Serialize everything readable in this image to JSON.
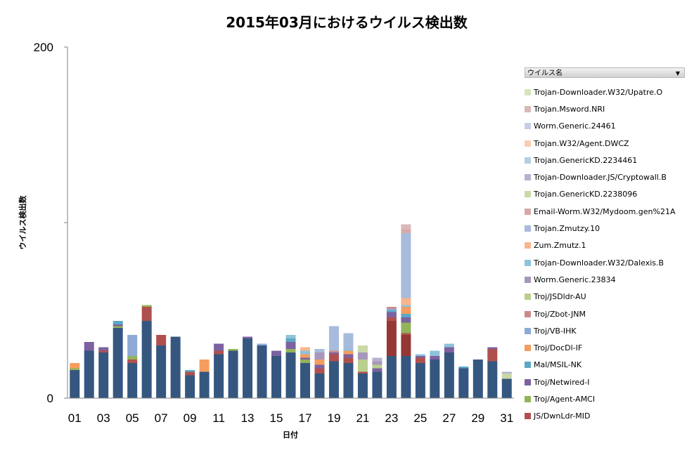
{
  "chart_data": {
    "type": "bar",
    "stacked": true,
    "title": "2015年03月におけるウイルス検出数",
    "xlabel": "日付",
    "ylabel": "ウイルス検出数",
    "ylim": [
      0,
      200
    ],
    "y_ticks": [
      "0",
      "200"
    ],
    "gridlines": [
      100
    ],
    "x_tick_labels": [
      "01",
      "03",
      "05",
      "07",
      "09",
      "11",
      "13",
      "15",
      "17",
      "19",
      "21",
      "23",
      "25",
      "27",
      "29",
      "31"
    ],
    "categories": [
      "01",
      "02",
      "03",
      "04",
      "05",
      "06",
      "07",
      "08",
      "09",
      "10",
      "11",
      "12",
      "13",
      "14",
      "15",
      "16",
      "17",
      "18",
      "19",
      "20",
      "21",
      "22",
      "23",
      "24",
      "25",
      "26",
      "27",
      "28",
      "29",
      "30",
      "31"
    ],
    "legend_title": "ウイルス名",
    "legend": [
      {
        "name": "Trojan-Downloader.W32/Upatre.O",
        "color": "#d7e4bd"
      },
      {
        "name": "Trojan.Msword.NRI",
        "color": "#d9b8b8"
      },
      {
        "name": "Worm.Generic.24461",
        "color": "#c6cde8"
      },
      {
        "name": "Trojan.W32/Agent.DWCZ",
        "color": "#fbcdb0"
      },
      {
        "name": "Trojan.GenericKD.2234461",
        "color": "#b4cfe0"
      },
      {
        "name": "Trojan-Downloader.JS/Cryptowall.B",
        "color": "#b4b3d0"
      },
      {
        "name": "Trojan.GenericKD.2238096",
        "color": "#c9d9a8"
      },
      {
        "name": "Email-Worm.W32/Mydoom.gen%21A",
        "color": "#d7a9a6"
      },
      {
        "name": "Trojan.Zmutzy.10",
        "color": "#a7bbdc"
      },
      {
        "name": "Zum.Zmutz.1",
        "color": "#f8b58c"
      },
      {
        "name": "Trojan-Downloader.W32/Dalexis.B",
        "color": "#8dc3dc"
      },
      {
        "name": "Worm.Generic.23834",
        "color": "#a896bb"
      },
      {
        "name": "Troj/JSDldr-AU",
        "color": "#b9cf8e"
      },
      {
        "name": "Troj/Zbot-JNM",
        "color": "#cc8b89"
      },
      {
        "name": "Troj/VB-IHK",
        "color": "#8eaad5"
      },
      {
        "name": "Troj/DocDl-IF",
        "color": "#f59d5e"
      },
      {
        "name": "Mal/MSIL-NK",
        "color": "#5ba8c6"
      },
      {
        "name": "Troj/Netwired-I",
        "color": "#7c629f"
      },
      {
        "name": "Troj/Agent-AMCI",
        "color": "#93b35a"
      },
      {
        "name": "JS/DwnLdr-MID",
        "color": "#b0504e"
      }
    ],
    "series": [
      {
        "name": "",
        "color": "#35577f",
        "values": [
          16,
          27,
          26,
          40,
          20,
          44,
          30,
          35,
          13,
          15,
          25,
          27,
          34,
          30,
          24,
          26,
          20,
          14,
          21,
          20,
          14,
          15,
          24,
          24,
          20,
          22,
          26,
          17,
          22,
          21,
          11
        ]
      },
      {
        "name": "",
        "color": "#953735",
        "values": [
          0,
          0,
          0,
          0,
          0,
          0,
          0,
          0,
          0,
          0,
          0,
          0,
          0,
          0,
          0,
          0,
          0,
          0,
          0,
          0,
          0,
          0,
          20,
          12,
          0,
          0,
          0,
          0,
          0,
          0,
          0
        ]
      },
      {
        "name": "JS/DwnLdr-MID",
        "color": "#b0504e",
        "values": [
          0,
          0,
          1,
          0,
          2,
          8,
          6,
          0,
          2,
          0,
          2,
          0,
          0,
          0,
          0,
          0,
          0,
          3,
          4,
          3,
          1,
          0,
          2,
          1,
          3,
          0,
          0,
          0,
          0,
          7,
          0
        ]
      },
      {
        "name": "Troj/Agent-AMCI",
        "color": "#93b35a",
        "values": [
          1,
          0,
          0,
          1,
          2,
          1,
          0,
          0,
          0,
          0,
          0,
          1,
          0,
          0,
          0,
          2,
          2,
          0,
          0,
          0,
          0,
          0,
          0,
          6,
          0,
          0,
          0,
          0,
          0,
          0,
          0
        ]
      },
      {
        "name": "Troj/Netwired-I",
        "color": "#7c629f",
        "values": [
          0,
          5,
          2,
          1,
          0,
          0,
          0,
          0,
          0,
          0,
          4,
          0,
          1,
          0,
          3,
          4,
          1,
          2,
          1,
          2,
          0,
          2,
          3,
          3,
          1,
          2,
          3,
          0,
          0,
          1,
          0
        ]
      },
      {
        "name": "Mal/MSIL-NK",
        "color": "#5ba8c6",
        "values": [
          0,
          0,
          0,
          2,
          0,
          0,
          0,
          0,
          1,
          0,
          0,
          0,
          0,
          0,
          0,
          2,
          0,
          0,
          0,
          0,
          0,
          0,
          1,
          2,
          0,
          0,
          0,
          1,
          0,
          0,
          0
        ]
      },
      {
        "name": "Troj/DocDl-IF",
        "color": "#f59d5e",
        "values": [
          3,
          0,
          0,
          0,
          0,
          0,
          0,
          0,
          0,
          7,
          0,
          0,
          0,
          0,
          0,
          0,
          2,
          3,
          0,
          2,
          0,
          0,
          0,
          4,
          0,
          0,
          0,
          0,
          0,
          0,
          0
        ]
      },
      {
        "name": "Troj/VB-IHK",
        "color": "#8eaad5",
        "values": [
          0,
          0,
          0,
          0,
          12,
          0,
          0,
          0,
          0,
          0,
          0,
          0,
          0,
          1,
          0,
          0,
          0,
          0,
          0,
          0,
          0,
          0,
          1,
          0,
          0,
          0,
          0,
          0,
          0,
          0,
          0
        ]
      },
      {
        "name": "Troj/Zbot-JNM",
        "color": "#cc8b89",
        "values": [
          0,
          0,
          0,
          0,
          0,
          0,
          0,
          0,
          0,
          0,
          0,
          0,
          0,
          0,
          0,
          0,
          0,
          0,
          1,
          0,
          0,
          0,
          1,
          0,
          0,
          0,
          0,
          0,
          0,
          0,
          0
        ]
      },
      {
        "name": "Troj/JSDldr-AU",
        "color": "#b9cf8e",
        "values": [
          0,
          0,
          0,
          0,
          0,
          0,
          0,
          0,
          0,
          0,
          0,
          0,
          0,
          0,
          0,
          0,
          0,
          0,
          0,
          0,
          7,
          2,
          0,
          0,
          0,
          0,
          0,
          0,
          0,
          0,
          0
        ]
      },
      {
        "name": "Worm.Generic.23834",
        "color": "#a896bb",
        "values": [
          0,
          0,
          0,
          0,
          0,
          0,
          0,
          0,
          0,
          0,
          0,
          0,
          0,
          0,
          0,
          0,
          0,
          4,
          0,
          0,
          4,
          2,
          0,
          0,
          0,
          0,
          0,
          0,
          0,
          0,
          0
        ]
      },
      {
        "name": "Trojan-Downloader.W32/Dalexis.B",
        "color": "#8dc3dc",
        "values": [
          0,
          0,
          0,
          0,
          0,
          0,
          0,
          0,
          0,
          0,
          0,
          0,
          0,
          0,
          0,
          2,
          2,
          0,
          0,
          1,
          0,
          0,
          0,
          1,
          1,
          3,
          2,
          0,
          0,
          0,
          0
        ]
      },
      {
        "name": "Zum.Zmutz.1",
        "color": "#f8b58c",
        "values": [
          0,
          0,
          0,
          0,
          0,
          0,
          0,
          0,
          0,
          0,
          0,
          0,
          0,
          0,
          0,
          0,
          2,
          0,
          0,
          0,
          0,
          0,
          0,
          4,
          0,
          0,
          0,
          0,
          0,
          0,
          0
        ]
      },
      {
        "name": "Trojan.Zmutzy.10",
        "color": "#a7bbdc",
        "values": [
          0,
          0,
          0,
          0,
          0,
          0,
          0,
          0,
          0,
          0,
          0,
          0,
          0,
          0,
          0,
          0,
          0,
          2,
          14,
          9,
          0,
          0,
          0,
          37,
          0,
          0,
          0,
          0,
          0,
          0,
          0
        ]
      },
      {
        "name": "Email-Worm.W32/Mydoom.gen%21A",
        "color": "#d7a9a6",
        "values": [
          0,
          0,
          0,
          0,
          0,
          0,
          0,
          0,
          0,
          0,
          0,
          0,
          0,
          0,
          0,
          0,
          0,
          0,
          0,
          0,
          0,
          0,
          0,
          2,
          0,
          0,
          0,
          0,
          0,
          0,
          0
        ]
      },
      {
        "name": "Trojan.GenericKD.2238096",
        "color": "#c9d9a8",
        "values": [
          0,
          0,
          0,
          0,
          0,
          0,
          0,
          0,
          0,
          0,
          0,
          0,
          0,
          0,
          0,
          0,
          0,
          0,
          0,
          0,
          4,
          0,
          0,
          0,
          0,
          0,
          0,
          0,
          0,
          0,
          3
        ]
      },
      {
        "name": "Trojan-Downloader.JS/Cryptowall.B",
        "color": "#b4b3d0",
        "values": [
          0,
          0,
          0,
          0,
          0,
          0,
          0,
          0,
          0,
          0,
          0,
          0,
          0,
          0,
          0,
          0,
          0,
          0,
          0,
          0,
          0,
          2,
          0,
          0,
          0,
          0,
          0,
          0,
          0,
          0,
          1
        ]
      },
      {
        "name": "Trojan.GenericKD.2234461",
        "color": "#b4cfe0",
        "values": [
          0,
          0,
          0,
          0,
          0,
          0,
          0,
          0,
          0,
          0,
          0,
          0,
          0,
          0,
          0,
          0,
          0,
          0,
          0,
          0,
          0,
          0,
          0,
          0,
          0,
          0,
          0,
          0,
          0,
          0,
          0
        ]
      },
      {
        "name": "Trojan.W32/Agent.DWCZ",
        "color": "#fbcdb0",
        "values": [
          0,
          0,
          0,
          0,
          0,
          0,
          0,
          0,
          0,
          0,
          0,
          0,
          0,
          0,
          0,
          0,
          0,
          0,
          0,
          0,
          0,
          0,
          0,
          0,
          0,
          0,
          0,
          0,
          0,
          0,
          0
        ]
      },
      {
        "name": "Worm.Generic.24461",
        "color": "#c6cde8",
        "values": [
          0,
          0,
          0,
          0,
          0,
          0,
          0,
          0,
          0,
          0,
          0,
          0,
          0,
          0,
          0,
          0,
          0,
          0,
          0,
          0,
          0,
          0,
          0,
          0,
          0,
          0,
          0,
          0,
          0,
          0,
          0
        ]
      },
      {
        "name": "Trojan.Msword.NRI",
        "color": "#d9b8b8",
        "values": [
          0,
          0,
          0,
          0,
          0,
          0,
          0,
          0,
          0,
          0,
          0,
          0,
          0,
          0,
          0,
          0,
          0,
          0,
          0,
          0,
          0,
          0,
          0,
          3,
          0,
          0,
          0,
          0,
          0,
          0,
          0
        ]
      },
      {
        "name": "Trojan-Downloader.W32/Upatre.O",
        "color": "#d7e4bd",
        "values": [
          0,
          0,
          0,
          0,
          0,
          0,
          0,
          0,
          0,
          0,
          0,
          0,
          0,
          0,
          0,
          0,
          0,
          0,
          0,
          0,
          0,
          0,
          0,
          0,
          0,
          0,
          0,
          0,
          0,
          0,
          0
        ]
      }
    ]
  }
}
